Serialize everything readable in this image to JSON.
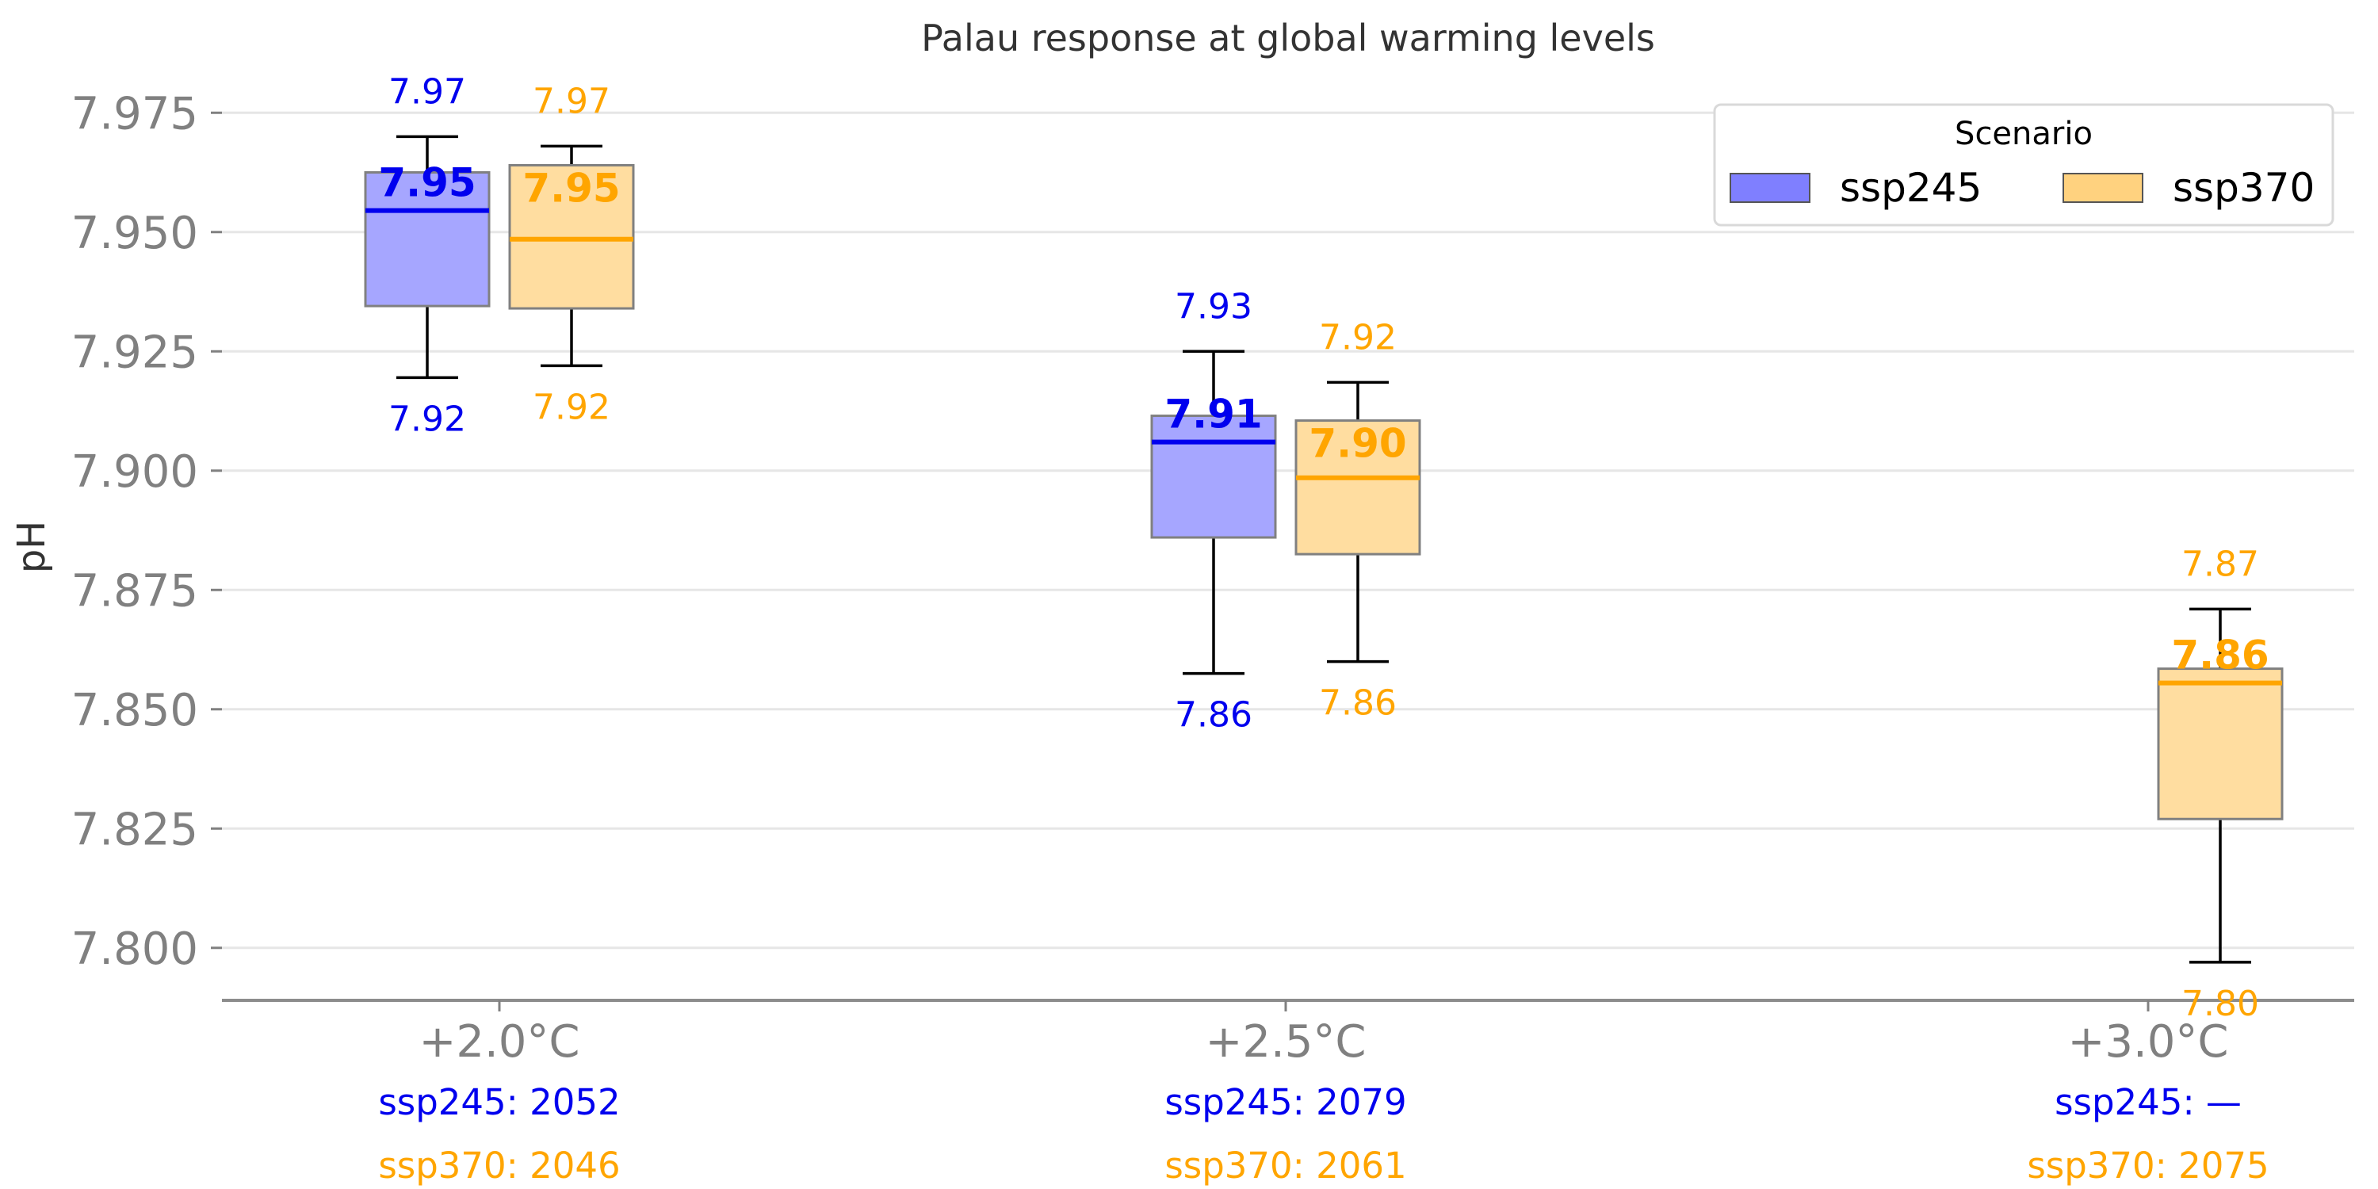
{
  "chart_data": {
    "type": "box",
    "title": "Palau response at global warming levels",
    "ylabel": "pH",
    "xlabel": "",
    "ylim": [
      7.789,
      7.988
    ],
    "yticks": [
      "7.800",
      "7.825",
      "7.850",
      "7.875",
      "7.900",
      "7.925",
      "7.950",
      "7.975"
    ],
    "grid": "horizontal",
    "legend": {
      "title": "Scenario",
      "placement": "top-right"
    },
    "categories": [
      "+2.0°C",
      "+2.5°C",
      "+3.0°C"
    ],
    "series": [
      {
        "name": "ssp245",
        "color": "#0000ee",
        "fill": "#a6a6ff",
        "legend_fill": "#7f7fff",
        "boxes": [
          {
            "whisker_low": 7.9195,
            "q1": 7.9345,
            "median": 7.9545,
            "q3": 7.9625,
            "whisker_high": 7.97,
            "label_low": "7.92",
            "label_median": "7.95",
            "label_high": "7.97",
            "year_label": "ssp245: 2052"
          },
          {
            "whisker_low": 7.8575,
            "q1": 7.886,
            "median": 7.906,
            "q3": 7.9115,
            "whisker_high": 7.925,
            "label_low": "7.86",
            "label_median": "7.91",
            "label_high": "7.93",
            "year_label": "ssp245: 2079"
          },
          {
            "year_label": "ssp245: —"
          }
        ]
      },
      {
        "name": "ssp370",
        "color": "#ffa500",
        "fill": "#ffdda0",
        "legend_fill": "#ffd27f",
        "boxes": [
          {
            "whisker_low": 7.922,
            "q1": 7.934,
            "median": 7.9485,
            "q3": 7.964,
            "whisker_high": 7.968,
            "label_low": "7.92",
            "label_median": "7.95",
            "label_high": "7.97",
            "year_label": "ssp370: 2046"
          },
          {
            "whisker_low": 7.86,
            "q1": 7.8825,
            "median": 7.8985,
            "q3": 7.9105,
            "whisker_high": 7.9185,
            "label_low": "7.86",
            "label_median": "7.90",
            "label_high": "7.92",
            "year_label": "ssp370: 2061"
          },
          {
            "whisker_low": 7.797,
            "q1": 7.827,
            "median": 7.8555,
            "q3": 7.8585,
            "whisker_high": 7.871,
            "label_low": "7.80",
            "label_median": "7.86",
            "label_high": "7.87",
            "year_label": "ssp370: 2075"
          }
        ]
      }
    ]
  }
}
